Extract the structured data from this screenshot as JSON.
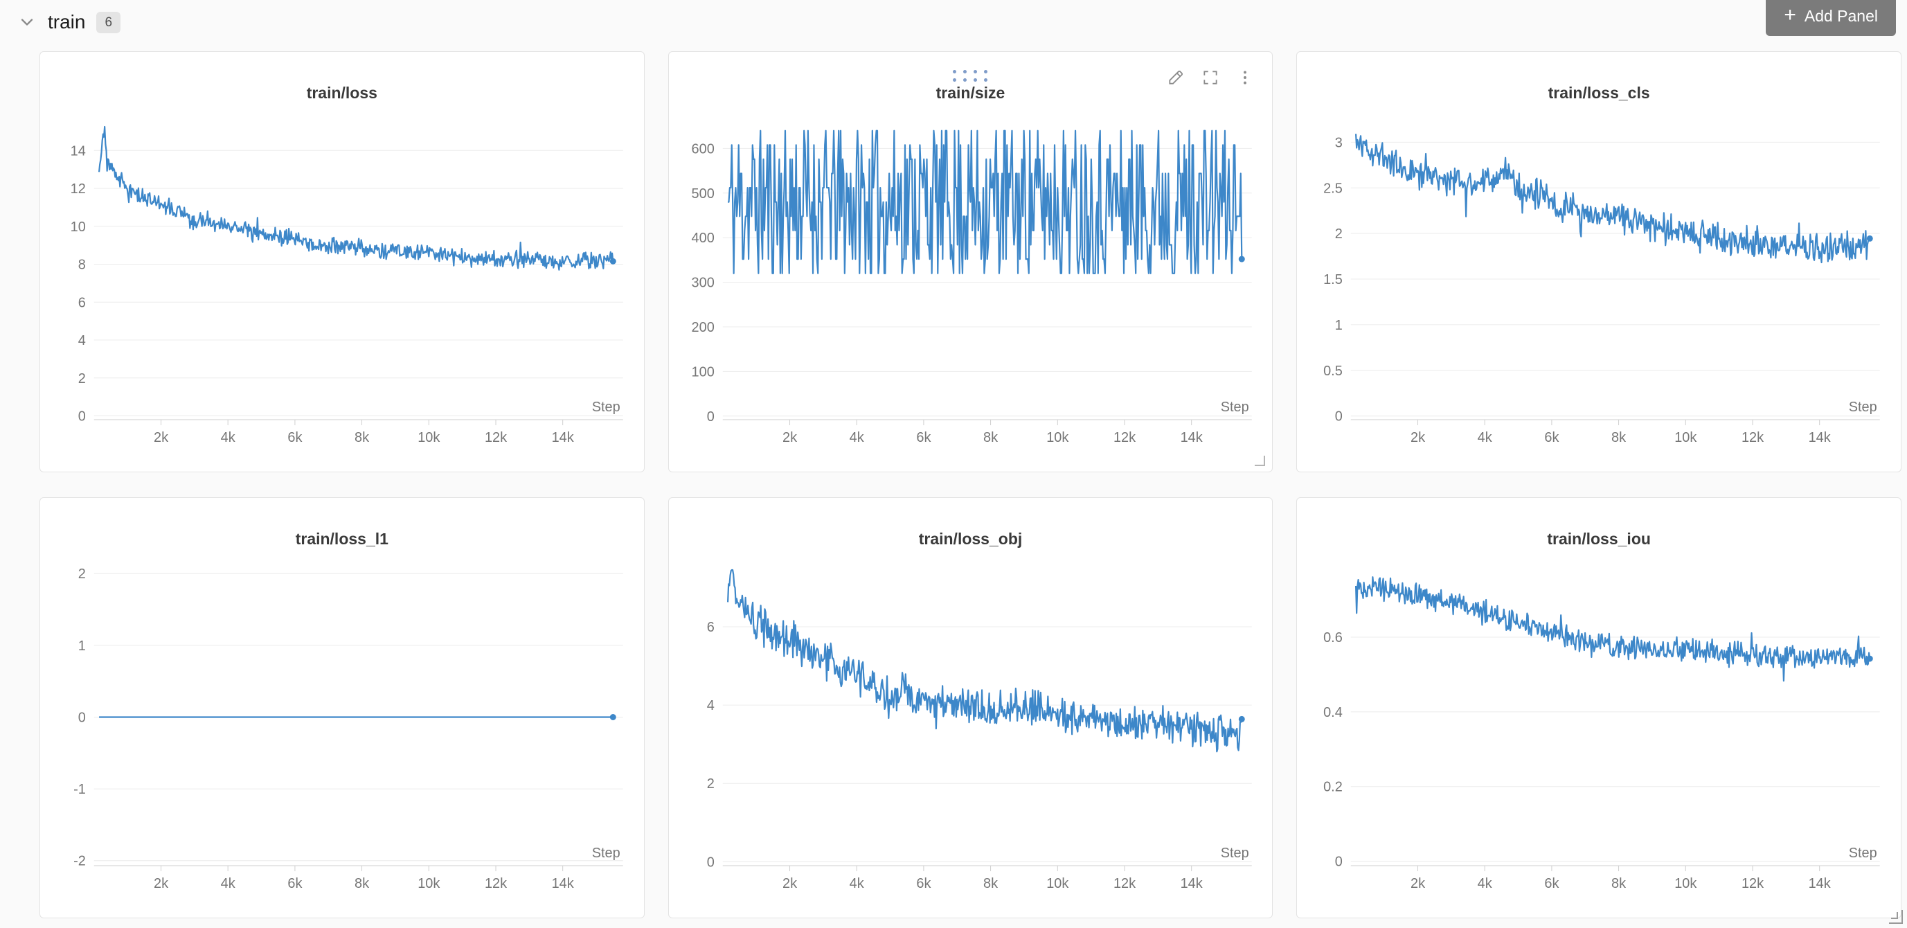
{
  "colors": {
    "page_bg": "#fafafa",
    "panel_bg": "#ffffff",
    "panel_border": "#e3e3e3",
    "line": "#3d87c9",
    "grid": "#ececec",
    "axis": "#cfcfcf",
    "tick_text": "#767676",
    "title_text": "#3a3a3a",
    "button_bg": "#7b7b7b",
    "button_text": "#ffffff",
    "badge_bg": "#e4e4e4",
    "drag_dots": "#7f9cc9",
    "control_icons": "#8b8b8b"
  },
  "header": {
    "section_title": "train",
    "panel_count": "6",
    "add_panel_label": "Add Panel",
    "add_panel_icon_glyph": "+",
    "collapse_icon": "chevron-down-icon"
  },
  "panel_controls": {
    "visible_on_panel": "train/size",
    "icons": [
      "drag-handle-dots",
      "edit-pencil",
      "fullscreen",
      "kebab-menu"
    ],
    "resize_handle": "bottom-right-corner"
  },
  "chart_data": [
    {
      "type": "line",
      "title": "train/loss",
      "xlabel": "Step",
      "grid": "horizontal-only",
      "xlim": [
        0,
        15800
      ],
      "ylim": [
        -0.2,
        15.4
      ],
      "y_ticks": [
        0,
        2,
        4,
        6,
        8,
        10,
        12,
        14
      ],
      "x_tick_labels": [
        "2k",
        "4k",
        "6k",
        "8k",
        "10k",
        "12k",
        "14k"
      ],
      "x_tick_values": [
        2000,
        4000,
        6000,
        8000,
        10000,
        12000,
        14000
      ],
      "series": [
        {
          "name": "train/loss",
          "mode": "trend",
          "color": "#3d87c9",
          "seed": 3,
          "n_points": 640,
          "x_start": 150,
          "x_end": 15500,
          "noise": 0.3,
          "keypoints": [
            [
              150,
              13.0
            ],
            [
              280,
              14.9
            ],
            [
              420,
              13.3
            ],
            [
              700,
              12.5
            ],
            [
              1000,
              12.0
            ],
            [
              1500,
              11.5
            ],
            [
              2000,
              11.1
            ],
            [
              2500,
              10.8
            ],
            [
              3000,
              10.4
            ],
            [
              3500,
              10.2
            ],
            [
              4000,
              10.0
            ],
            [
              4500,
              9.8
            ],
            [
              5000,
              9.6
            ],
            [
              5500,
              9.45
            ],
            [
              6000,
              9.3
            ],
            [
              7000,
              9.0
            ],
            [
              8000,
              8.85
            ],
            [
              9000,
              8.7
            ],
            [
              10000,
              8.55
            ],
            [
              11000,
              8.4
            ],
            [
              12000,
              8.3
            ],
            [
              13000,
              8.2
            ],
            [
              14000,
              8.15
            ],
            [
              15500,
              8.2
            ]
          ]
        }
      ]
    },
    {
      "type": "line",
      "title": "train/size",
      "xlabel": "Step",
      "grid": "horizontal-only",
      "xlim": [
        0,
        15800
      ],
      "ylim": [
        -8,
        655
      ],
      "y_ticks": [
        0,
        100,
        200,
        300,
        400,
        500,
        600
      ],
      "x_tick_labels": [
        "2k",
        "4k",
        "6k",
        "8k",
        "10k",
        "12k",
        "14k"
      ],
      "x_tick_values": [
        2000,
        4000,
        6000,
        8000,
        10000,
        12000,
        14000
      ],
      "series": [
        {
          "name": "train/size",
          "mode": "uniform",
          "color": "#3d87c9",
          "seed": 11,
          "n_points": 520,
          "x_start": 150,
          "x_end": 15500,
          "min": 320,
          "max": 640,
          "quantize": 32
        }
      ]
    },
    {
      "type": "line",
      "title": "train/loss_cls",
      "xlabel": "Step",
      "grid": "horizontal-only",
      "xlim": [
        0,
        15800
      ],
      "ylim": [
        -0.04,
        3.2
      ],
      "y_ticks": [
        0,
        0.5,
        1,
        1.5,
        2,
        2.5,
        3
      ],
      "x_tick_labels": [
        "2k",
        "4k",
        "6k",
        "8k",
        "10k",
        "12k",
        "14k"
      ],
      "x_tick_values": [
        2000,
        4000,
        6000,
        8000,
        10000,
        12000,
        14000
      ],
      "series": [
        {
          "name": "train/loss_cls",
          "mode": "trend",
          "color": "#3d87c9",
          "seed": 5,
          "n_points": 640,
          "x_start": 150,
          "x_end": 15500,
          "noise": 0.11,
          "keypoints": [
            [
              150,
              3.0
            ],
            [
              600,
              2.92
            ],
            [
              1200,
              2.8
            ],
            [
              2000,
              2.68
            ],
            [
              2600,
              2.62
            ],
            [
              3200,
              2.58
            ],
            [
              3800,
              2.52
            ],
            [
              4200,
              2.6
            ],
            [
              4600,
              2.7
            ],
            [
              5000,
              2.5
            ],
            [
              5600,
              2.42
            ],
            [
              6200,
              2.3
            ],
            [
              7000,
              2.25
            ],
            [
              8000,
              2.18
            ],
            [
              9000,
              2.08
            ],
            [
              10000,
              2.0
            ],
            [
              11000,
              1.95
            ],
            [
              12000,
              1.9
            ],
            [
              13000,
              1.86
            ],
            [
              14000,
              1.84
            ],
            [
              15500,
              1.9
            ]
          ]
        }
      ]
    },
    {
      "type": "line",
      "title": "train/loss_l1",
      "xlabel": "Step",
      "grid": "horizontal-only",
      "xlim": [
        0,
        15800
      ],
      "ylim": [
        -2.07,
        2.05
      ],
      "y_ticks": [
        -2,
        -1,
        0,
        1,
        2
      ],
      "x_tick_labels": [
        "2k",
        "4k",
        "6k",
        "8k",
        "10k",
        "12k",
        "14k"
      ],
      "x_tick_values": [
        2000,
        4000,
        6000,
        8000,
        10000,
        12000,
        14000
      ],
      "series": [
        {
          "name": "train/loss_l1",
          "mode": "constant",
          "color": "#3d87c9",
          "seed": 1,
          "n_points": 200,
          "x_start": 150,
          "x_end": 15500,
          "value": 0
        }
      ]
    },
    {
      "type": "line",
      "title": "train/loss_obj",
      "xlabel": "Step",
      "grid": "horizontal-only",
      "xlim": [
        0,
        15800
      ],
      "ylim": [
        -0.1,
        7.45
      ],
      "y_ticks": [
        0,
        2,
        4,
        6
      ],
      "x_tick_labels": [
        "2k",
        "4k",
        "6k",
        "8k",
        "10k",
        "12k",
        "14k"
      ],
      "x_tick_values": [
        2000,
        4000,
        6000,
        8000,
        10000,
        12000,
        14000
      ],
      "series": [
        {
          "name": "train/loss_obj",
          "mode": "trend",
          "color": "#3d87c9",
          "seed": 9,
          "n_points": 640,
          "x_start": 150,
          "x_end": 15500,
          "noise": 0.32,
          "keypoints": [
            [
              150,
              6.6
            ],
            [
              260,
              7.4
            ],
            [
              400,
              6.8
            ],
            [
              700,
              6.3
            ],
            [
              1000,
              6.1
            ],
            [
              1500,
              5.9
            ],
            [
              2000,
              5.6
            ],
            [
              2500,
              5.4
            ],
            [
              3000,
              5.15
            ],
            [
              3500,
              4.95
            ],
            [
              4000,
              4.75
            ],
            [
              4500,
              4.45
            ],
            [
              5000,
              4.15
            ],
            [
              5300,
              4.5
            ],
            [
              5700,
              4.25
            ],
            [
              6000,
              4.2
            ],
            [
              6500,
              4.1
            ],
            [
              7000,
              4.0
            ],
            [
              7500,
              3.95
            ],
            [
              8000,
              3.9
            ],
            [
              9000,
              3.9
            ],
            [
              10000,
              3.8
            ],
            [
              10500,
              3.7
            ],
            [
              11000,
              3.75
            ],
            [
              12000,
              3.5
            ],
            [
              12500,
              3.55
            ],
            [
              13000,
              3.6
            ],
            [
              13500,
              3.5
            ],
            [
              14000,
              3.5
            ],
            [
              14500,
              3.4
            ],
            [
              15000,
              3.3
            ],
            [
              15500,
              3.2
            ]
          ]
        }
      ]
    },
    {
      "type": "line",
      "title": "train/loss_iou",
      "xlabel": "Step",
      "grid": "horizontal-only",
      "xlim": [
        0,
        15800
      ],
      "ylim": [
        -0.012,
        0.78
      ],
      "y_ticks": [
        0,
        0.2,
        0.4,
        0.6
      ],
      "x_tick_labels": [
        "2k",
        "4k",
        "6k",
        "8k",
        "10k",
        "12k",
        "14k"
      ],
      "x_tick_values": [
        2000,
        4000,
        6000,
        8000,
        10000,
        12000,
        14000
      ],
      "series": [
        {
          "name": "train/loss_iou",
          "mode": "trend",
          "color": "#3d87c9",
          "seed": 13,
          "n_points": 640,
          "x_start": 150,
          "x_end": 15500,
          "noise": 0.02,
          "keypoints": [
            [
              150,
              0.74
            ],
            [
              800,
              0.73
            ],
            [
              1600,
              0.72
            ],
            [
              2400,
              0.705
            ],
            [
              3200,
              0.69
            ],
            [
              4000,
              0.67
            ],
            [
              4800,
              0.645
            ],
            [
              5600,
              0.62
            ],
            [
              6400,
              0.6
            ],
            [
              7200,
              0.585
            ],
            [
              8000,
              0.575
            ],
            [
              9000,
              0.57
            ],
            [
              10000,
              0.565
            ],
            [
              11000,
              0.56
            ],
            [
              12000,
              0.555
            ],
            [
              13000,
              0.55
            ],
            [
              14000,
              0.545
            ],
            [
              15500,
              0.55
            ]
          ]
        }
      ]
    }
  ]
}
